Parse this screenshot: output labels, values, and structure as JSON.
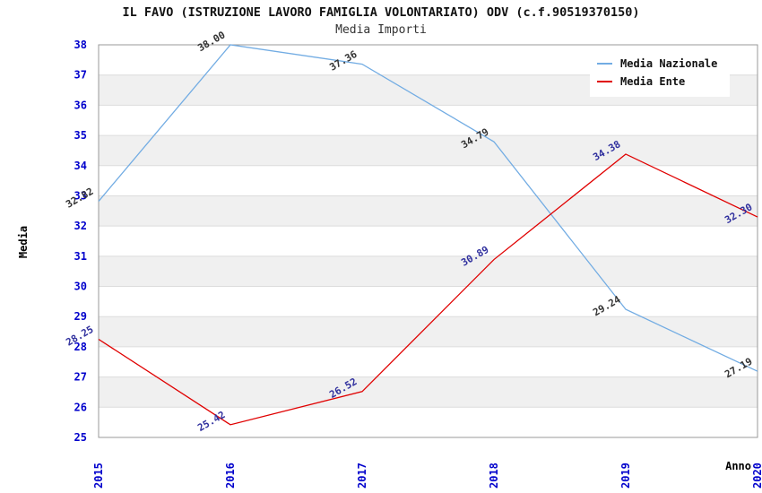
{
  "page": {
    "title": "IL FAVO (ISTRUZIONE LAVORO FAMIGLIA VOLONTARIATO) ODV (c.f.90519370150)",
    "subtitle": "Media Importi"
  },
  "legend": {
    "items": [
      {
        "label": "Media Nazionale",
        "color": "#72ACE3"
      },
      {
        "label": "Media Ente",
        "color": "#E00000"
      }
    ]
  },
  "chart_data": {
    "type": "line",
    "title": "IL FAVO (ISTRUZIONE LAVORO FAMIGLIA VOLONTARIATO) ODV (c.f.90519370150)",
    "subtitle": "Media Importi",
    "xlabel": "Anno",
    "ylabel": "Media",
    "categories": [
      "2015",
      "2016",
      "2017",
      "2018",
      "2019",
      "2020"
    ],
    "ylim": [
      25,
      38
    ],
    "y_tick_step": 1,
    "grid": true,
    "legend_position": "top-right",
    "band_colors": [
      "#FFFFFF",
      "#F0F0F0"
    ],
    "gridline_color": "#DCDCDC",
    "border_color": "#999999",
    "tick_label_color": "#0000CC",
    "series": [
      {
        "name": "Media Nazionale",
        "color": "#72ACE3",
        "values": [
          32.82,
          38.0,
          37.36,
          34.79,
          29.24,
          27.19
        ],
        "point_labels": [
          "32.82",
          "38.00",
          "37.36",
          "34.79",
          "29.24",
          "27.19"
        ],
        "label_color": "#333333"
      },
      {
        "name": "Media Ente",
        "color": "#E00000",
        "values": [
          28.25,
          25.42,
          26.52,
          30.89,
          34.38,
          32.3
        ],
        "point_labels": [
          "28.25",
          "25.42",
          "26.52",
          "30.89",
          "34.38",
          "32.30"
        ],
        "label_color": "#30309E"
      }
    ]
  }
}
